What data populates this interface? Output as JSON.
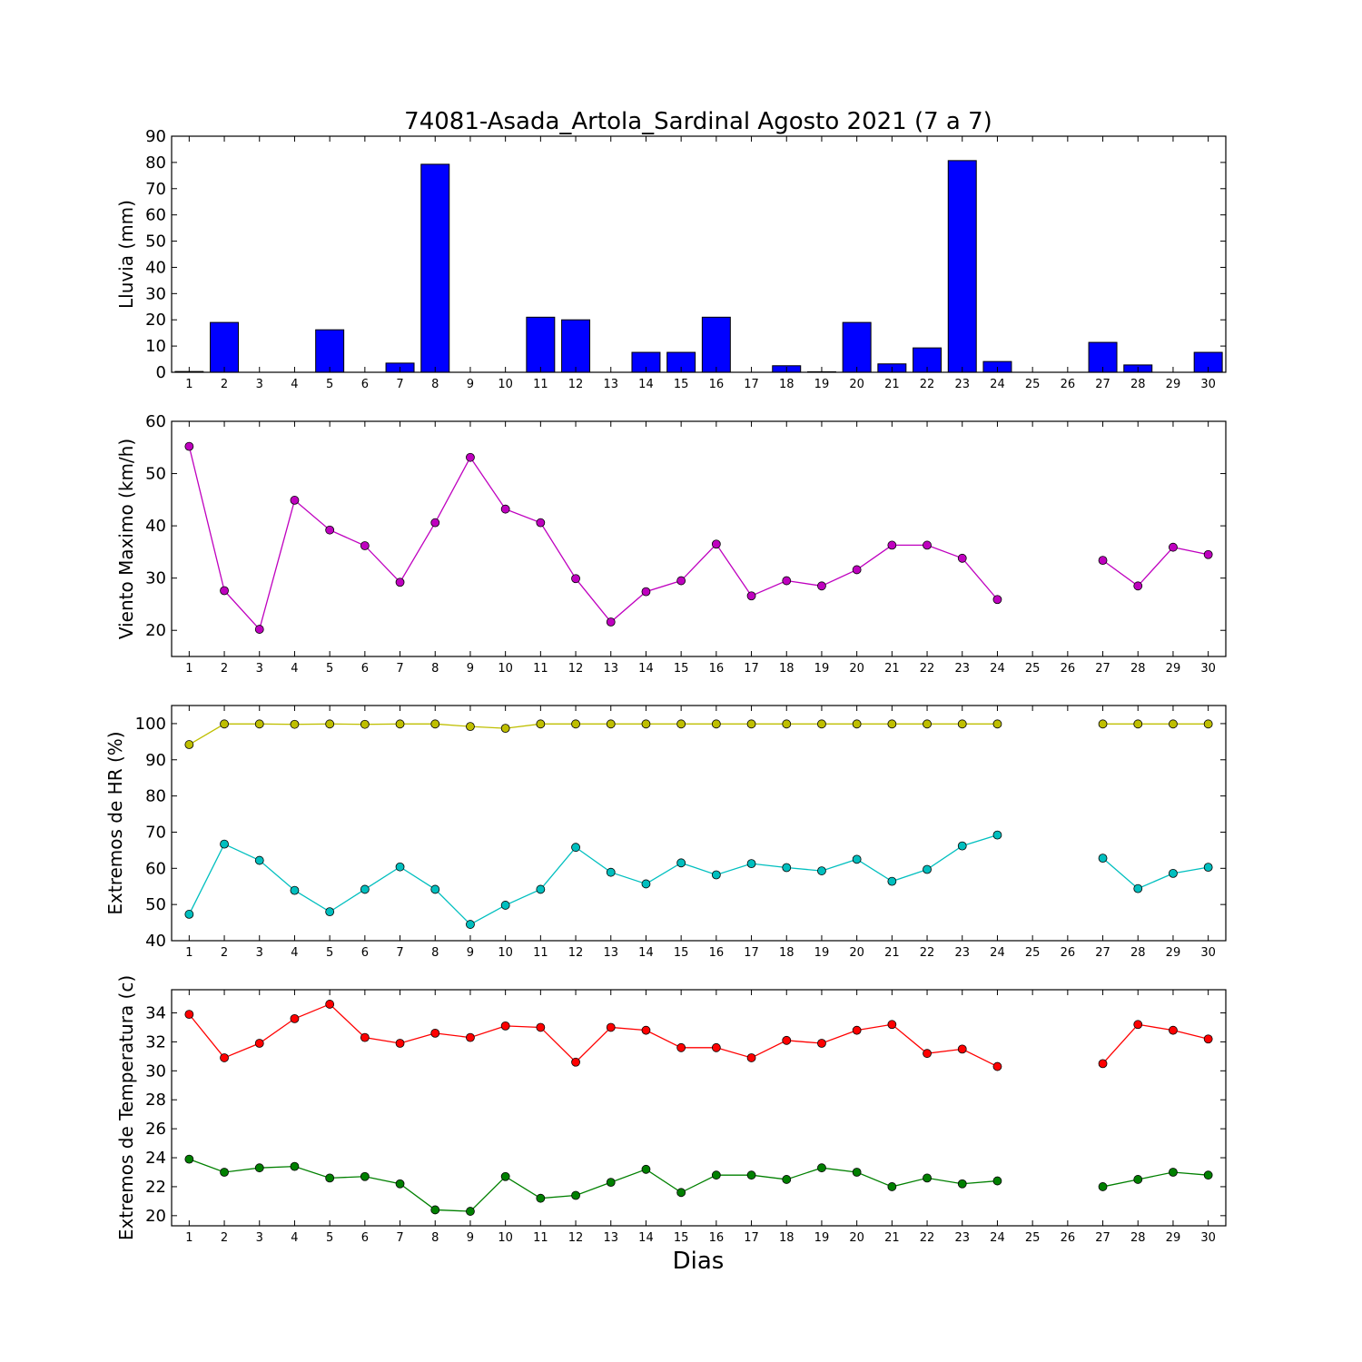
{
  "title": "74081-Asada_Artola_Sardinal Agosto 2021  (7 a 7)",
  "xlabel": "Dias",
  "chart_data": [
    {
      "type": "bar",
      "ylabel": "Lluvia (mm)",
      "ylim": [
        0,
        90
      ],
      "yticks": [
        0,
        10,
        20,
        30,
        40,
        50,
        60,
        70,
        80,
        90
      ],
      "x": [
        1,
        2,
        3,
        4,
        5,
        6,
        7,
        8,
        9,
        10,
        11,
        12,
        13,
        14,
        15,
        16,
        17,
        18,
        19,
        20,
        21,
        22,
        23,
        24,
        25,
        26,
        27,
        28,
        29,
        30
      ],
      "xlim": [
        0.5,
        30.5
      ],
      "grid": false,
      "series": [
        {
          "color": "#0000ff",
          "values": [
            0.3,
            19,
            0,
            0,
            16.2,
            0,
            3.5,
            79.3,
            0,
            0,
            21,
            20,
            0,
            7.6,
            7.6,
            21,
            0,
            2.5,
            0.2,
            19,
            3.2,
            9.3,
            80.7,
            4.1,
            0,
            0,
            11.4,
            2.8,
            0,
            7.6
          ]
        }
      ]
    },
    {
      "type": "line",
      "ylabel": "Viento Maximo (km/h)",
      "ylim": [
        15,
        60
      ],
      "yticks": [
        20,
        30,
        40,
        50,
        60
      ],
      "x": [
        1,
        2,
        3,
        4,
        5,
        6,
        7,
        8,
        9,
        10,
        11,
        12,
        13,
        14,
        15,
        16,
        17,
        18,
        19,
        20,
        21,
        22,
        23,
        24,
        25,
        26,
        27,
        28,
        29,
        30
      ],
      "xlim": [
        0.5,
        30.5
      ],
      "grid": false,
      "series": [
        {
          "color": "#bf00bf",
          "values": [
            55.2,
            27.6,
            20.2,
            44.9,
            39.2,
            36.2,
            29.2,
            40.6,
            53.1,
            43.2,
            40.6,
            29.9,
            21.6,
            27.4,
            29.5,
            36.5,
            26.6,
            29.5,
            28.5,
            31.6,
            36.3,
            36.3,
            33.8,
            25.9,
            null,
            null,
            33.4,
            28.5,
            35.9,
            34.5
          ]
        }
      ]
    },
    {
      "type": "line",
      "ylabel": "Extremos de HR (%)",
      "ylim": [
        40,
        105
      ],
      "yticks": [
        40,
        50,
        60,
        70,
        80,
        90,
        100
      ],
      "x": [
        1,
        2,
        3,
        4,
        5,
        6,
        7,
        8,
        9,
        10,
        11,
        12,
        13,
        14,
        15,
        16,
        17,
        18,
        19,
        20,
        21,
        22,
        23,
        24,
        25,
        26,
        27,
        28,
        29,
        30
      ],
      "xlim": [
        0.5,
        30.5
      ],
      "grid": false,
      "series": [
        {
          "color": "#bfbf00",
          "values": [
            94.2,
            99.9,
            99.9,
            99.8,
            99.9,
            99.8,
            99.9,
            99.9,
            99.2,
            98.7,
            99.9,
            99.9,
            99.9,
            99.9,
            99.9,
            99.9,
            99.9,
            99.9,
            99.9,
            99.9,
            99.9,
            99.9,
            99.9,
            99.9,
            null,
            null,
            99.9,
            99.9,
            99.9,
            99.9
          ]
        },
        {
          "color": "#00bfbf",
          "values": [
            47.3,
            66.7,
            62.2,
            53.9,
            48.0,
            54.2,
            60.4,
            54.2,
            44.5,
            49.8,
            54.2,
            65.8,
            58.9,
            55.7,
            61.5,
            58.2,
            61.3,
            60.2,
            59.3,
            62.5,
            56.4,
            59.7,
            66.2,
            69.2,
            null,
            null,
            62.8,
            54.4,
            58.6,
            60.3
          ]
        }
      ]
    },
    {
      "type": "line",
      "ylabel": "Extremos de Temperatura (c)",
      "ylim": [
        19.3,
        35.6
      ],
      "yticks": [
        20,
        22,
        24,
        26,
        28,
        30,
        32,
        34
      ],
      "x": [
        1,
        2,
        3,
        4,
        5,
        6,
        7,
        8,
        9,
        10,
        11,
        12,
        13,
        14,
        15,
        16,
        17,
        18,
        19,
        20,
        21,
        22,
        23,
        24,
        25,
        26,
        27,
        28,
        29,
        30
      ],
      "xlim": [
        0.5,
        30.5
      ],
      "grid": false,
      "series": [
        {
          "color": "#ff0000",
          "values": [
            33.9,
            30.9,
            31.9,
            33.6,
            34.6,
            32.3,
            31.9,
            32.6,
            32.3,
            33.1,
            33.0,
            30.6,
            33.0,
            32.8,
            31.6,
            31.6,
            30.9,
            32.1,
            31.9,
            32.8,
            33.2,
            31.2,
            31.5,
            30.3,
            null,
            null,
            30.5,
            33.2,
            32.8,
            32.2
          ]
        },
        {
          "color": "#008000",
          "values": [
            23.9,
            23.0,
            23.3,
            23.4,
            22.6,
            22.7,
            22.2,
            20.4,
            20.3,
            22.7,
            21.2,
            21.4,
            22.3,
            23.2,
            21.6,
            22.8,
            22.8,
            22.5,
            23.3,
            23.0,
            22.0,
            22.6,
            22.2,
            22.4,
            null,
            null,
            22.0,
            22.5,
            23.0,
            22.8
          ]
        }
      ]
    }
  ]
}
